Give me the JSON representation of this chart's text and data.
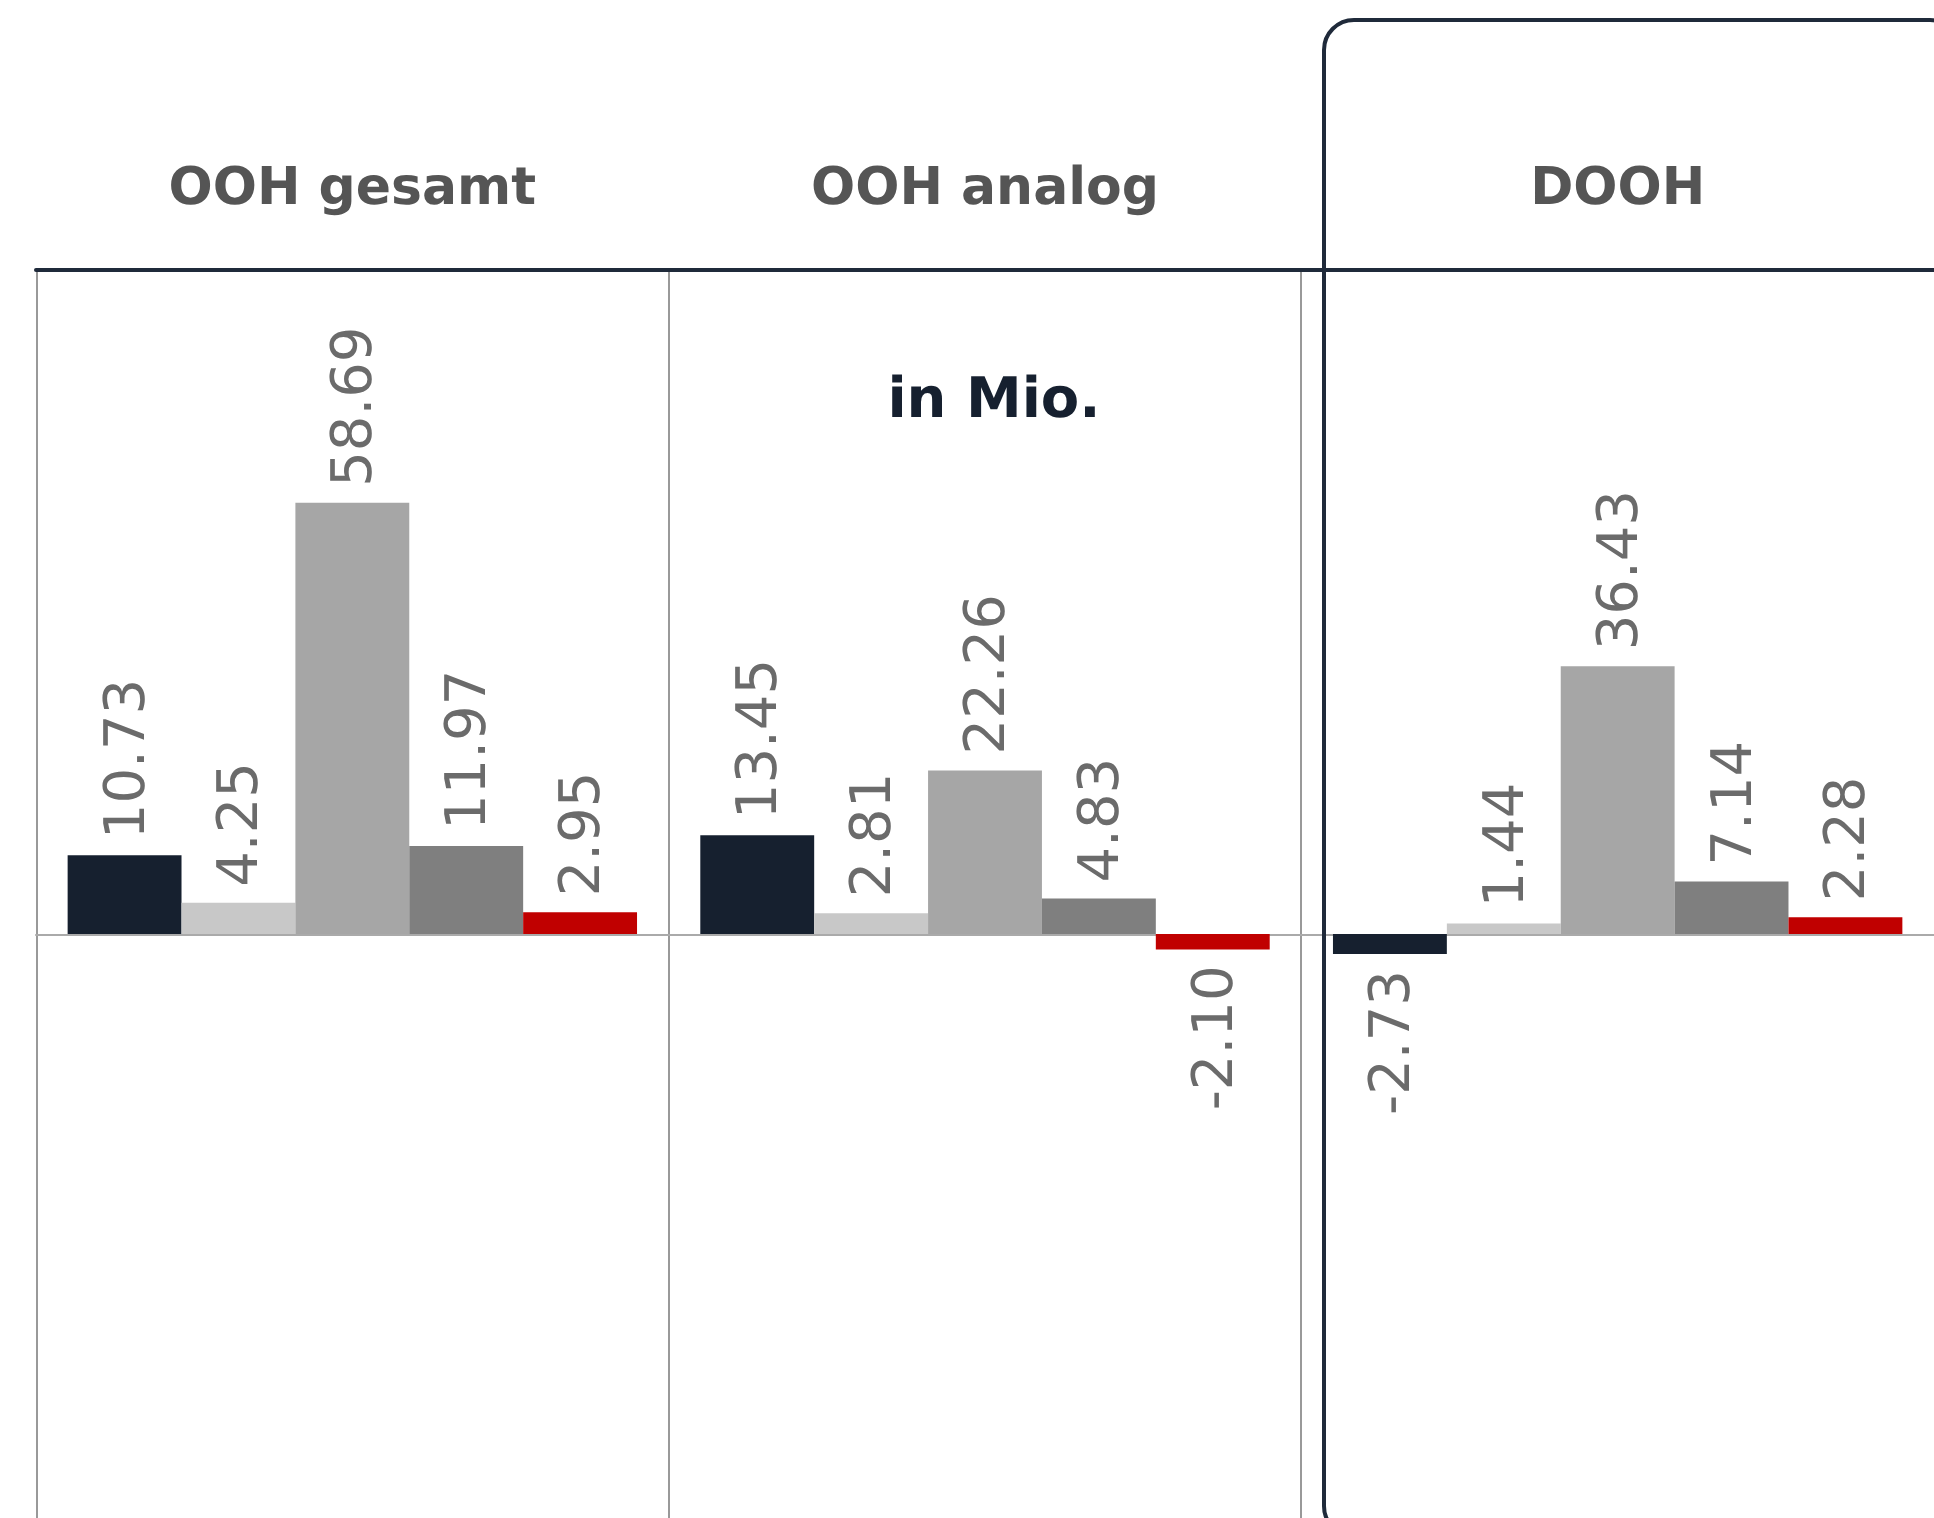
{
  "chart_data": {
    "type": "bar",
    "subtitle": "in Mio.",
    "categories": [
      "OOH gesamt",
      "OOH analog",
      "DOOH"
    ],
    "series": [
      {
        "color": "#16202f",
        "values": [
          10.73,
          13.45,
          -2.73
        ],
        "value_labels": [
          "10.73",
          "13.45",
          "-2.73"
        ]
      },
      {
        "color": "#c8c8c8",
        "values": [
          4.25,
          2.81,
          1.44
        ],
        "value_labels": [
          "4.25",
          "2.81",
          "1.44"
        ]
      },
      {
        "color": "#a6a6a6",
        "values": [
          58.69,
          22.26,
          36.43
        ],
        "value_labels": [
          "58.69",
          "22.26",
          "36.43"
        ]
      },
      {
        "color": "#7f7f7f",
        "values": [
          11.97,
          4.83,
          7.14
        ],
        "value_labels": [
          "11.97",
          "4.83",
          "7.14"
        ]
      },
      {
        "color": "#c00000",
        "values": [
          2.95,
          -2.1,
          2.28
        ],
        "value_labels": [
          "2.95",
          "-2.10",
          "2.28"
        ]
      }
    ],
    "grid": "x"
  }
}
